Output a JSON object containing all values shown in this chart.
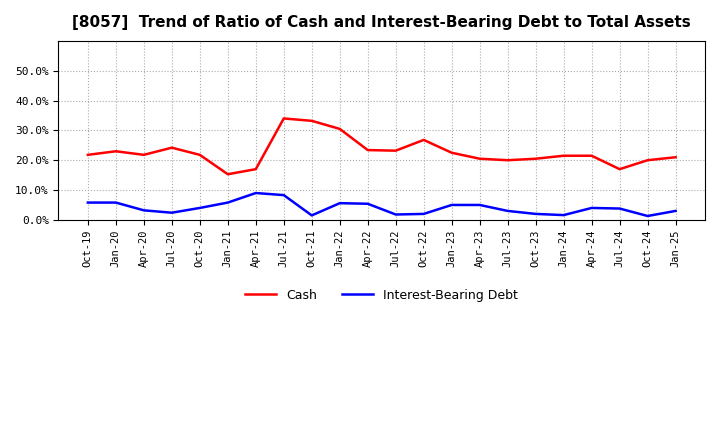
{
  "title": "[8057]  Trend of Ratio of Cash and Interest-Bearing Debt to Total Assets",
  "x_labels": [
    "Oct-19",
    "Jan-20",
    "Apr-20",
    "Jul-20",
    "Oct-20",
    "Jan-21",
    "Apr-21",
    "Jul-21",
    "Oct-21",
    "Jan-22",
    "Apr-22",
    "Jul-22",
    "Oct-22",
    "Jan-23",
    "Apr-23",
    "Jul-23",
    "Oct-23",
    "Jan-24",
    "Apr-24",
    "Jul-24",
    "Oct-24",
    "Jan-25"
  ],
  "cash": [
    0.218,
    0.23,
    0.218,
    0.242,
    0.218,
    0.153,
    0.17,
    0.34,
    0.332,
    0.305,
    0.234,
    0.232,
    0.268,
    0.225,
    0.205,
    0.2,
    0.205,
    0.215,
    0.215,
    0.17,
    0.2,
    0.21
  ],
  "ibd": [
    0.058,
    0.058,
    0.032,
    0.024,
    0.04,
    0.058,
    0.09,
    0.083,
    0.015,
    0.056,
    0.054,
    0.018,
    0.02,
    0.05,
    0.05,
    0.03,
    0.02,
    0.016,
    0.04,
    0.038,
    0.013,
    0.03
  ],
  "cash_color": "#FF0000",
  "ibd_color": "#0000FF",
  "bg_color": "#FFFFFF",
  "plot_bg_color": "#FFFFFF",
  "grid_color": "#AAAAAA",
  "ylim": [
    0.0,
    0.6
  ],
  "yticks": [
    0.0,
    0.1,
    0.2,
    0.3,
    0.4,
    0.5
  ],
  "legend_cash": "Cash",
  "legend_ibd": "Interest-Bearing Debt",
  "line_width": 1.8
}
